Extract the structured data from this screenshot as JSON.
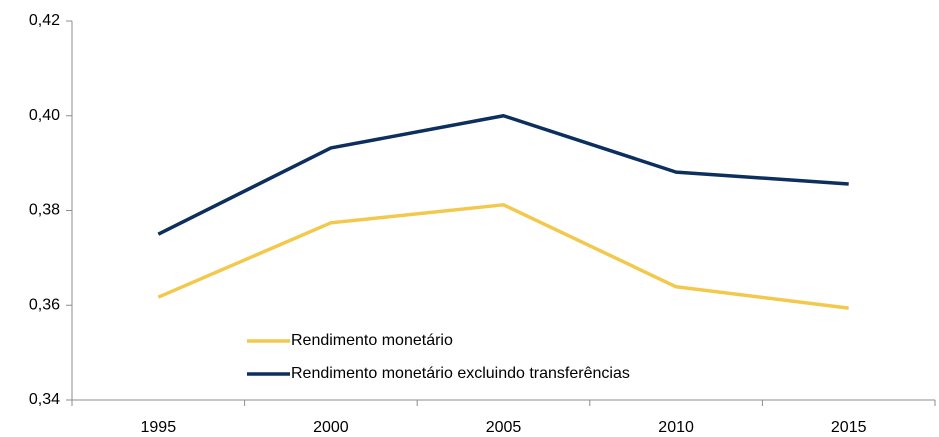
{
  "chart_data": {
    "type": "line",
    "categories": [
      "1995",
      "2000",
      "2005",
      "2010",
      "2015"
    ],
    "series": [
      {
        "name": "Rendimento monetário",
        "color": "#f2c94c",
        "values": [
          0.3617,
          0.3774,
          0.3812,
          0.3639,
          0.3594
        ]
      },
      {
        "name": "Rendimento monetário excluindo transferências",
        "color": "#0d2f5e",
        "values": [
          0.375,
          0.3932,
          0.4,
          0.3881,
          0.3856
        ]
      }
    ],
    "ylim": [
      0.34,
      0.42
    ],
    "yticks": [
      {
        "value": 0.34,
        "label": "0,34"
      },
      {
        "value": 0.36,
        "label": "0,36"
      },
      {
        "value": 0.38,
        "label": "0,38"
      },
      {
        "value": 0.4,
        "label": "0,40"
      },
      {
        "value": 0.42,
        "label": "0,42"
      }
    ],
    "grid": false
  }
}
